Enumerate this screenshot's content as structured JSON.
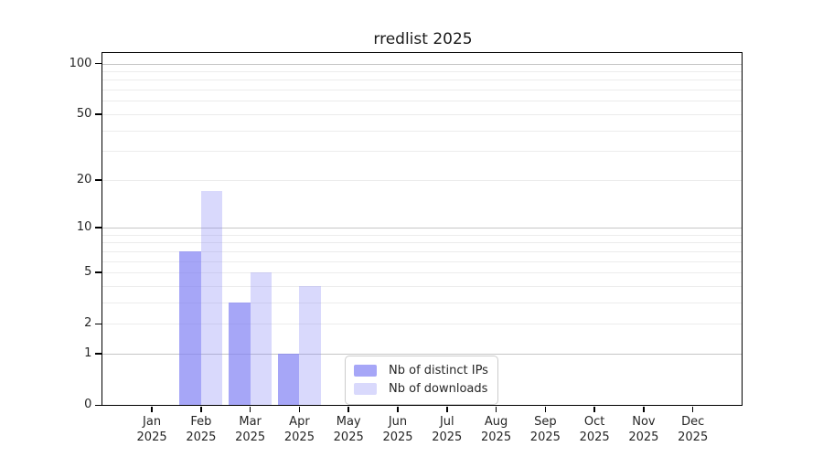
{
  "title": "rredlist 2025",
  "chart_data": {
    "type": "bar",
    "title": "rredlist 2025",
    "categories": [
      "Jan",
      "Feb",
      "Mar",
      "Apr",
      "May",
      "Jun",
      "Jul",
      "Aug",
      "Sep",
      "Oct",
      "Nov",
      "Dec"
    ],
    "category_year": "2025",
    "series": [
      {
        "name": "Nb of distinct IPs",
        "values": [
          0,
          7,
          3,
          1,
          0,
          0,
          0,
          0,
          0,
          0,
          0,
          0
        ]
      },
      {
        "name": "Nb of downloads",
        "values": [
          0,
          17,
          5,
          4,
          0,
          0,
          0,
          0,
          0,
          0,
          0,
          0
        ]
      }
    ],
    "yscale": "log1p",
    "ylim": [
      0,
      115
    ],
    "y_tick_labels": [
      0,
      1,
      2,
      5,
      10,
      20,
      50,
      100
    ],
    "y_major_gridlines": [
      1,
      10,
      100
    ],
    "y_minor_gridlines": [
      2,
      3,
      4,
      6,
      7,
      8,
      9,
      20,
      30,
      40,
      60,
      70,
      80,
      90,
      5,
      50
    ],
    "grid": "horizontal-only",
    "legend": {
      "position": "lower-center",
      "entries": [
        "Nb of distinct IPs",
        "Nb of downloads"
      ]
    },
    "colors": {
      "bar_base": "#8080f4",
      "ips_bar": "rgba(128,128,244,0.7)",
      "downloads_bar": "rgba(128,128,244,0.3)",
      "major_grid": "#c6c6c6",
      "minor_grid": "#ececec",
      "spine": "#000000",
      "text": "#262626"
    }
  }
}
